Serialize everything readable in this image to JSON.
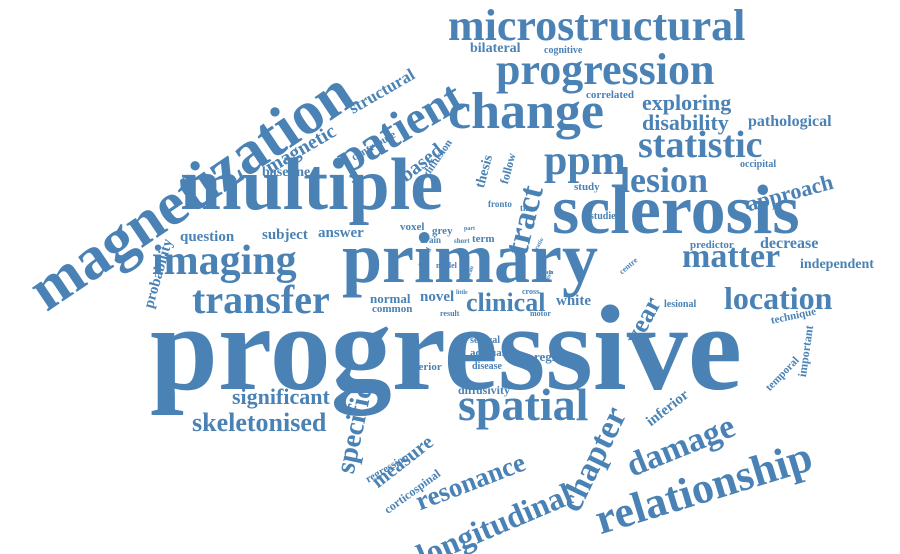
{
  "style": {
    "word_color": "#4a82b5",
    "background": "#ffffff"
  },
  "words": {
    "progressive": "progressive",
    "primary": "primary",
    "multiple": "multiple",
    "sclerosis": "sclerosis",
    "magnetization": "magnetization",
    "microstructural": "microstructural",
    "progression": "progression",
    "change": "change",
    "patient": "patient",
    "imaging": "imaging",
    "transfer": "transfer",
    "spatial": "spatial",
    "relationship": "relationship",
    "ppm": "ppm",
    "statistic": "statistic",
    "lesion": "lesion",
    "tract": "tract",
    "matter": "matter",
    "location": "location",
    "damage": "damage",
    "chapter": "chapter",
    "longitudinal": "longitudinal",
    "resonance": "resonance",
    "specific": "specific",
    "skeletonised": "skeletonised",
    "significant": "significant",
    "clinical": "clinical",
    "exploring": "exploring",
    "disability": "disability",
    "pathological": "pathological",
    "approach": "approach",
    "year": "year",
    "magnetic": "magnetic",
    "structural": "structural",
    "based": "based",
    "bilateral": "bilateral",
    "cognitive": "cognitive",
    "correlated": "correlated",
    "contribute": "contribute",
    "diffusion": "diffusion",
    "baseline": "baseline",
    "thesis": "thesis",
    "follow": "follow",
    "probability": "probability",
    "question": "question",
    "subject": "subject",
    "answer": "answer",
    "voxel": "voxel",
    "brain": "brain",
    "grey": "grey",
    "short": "short",
    "term": "term",
    "fronto": "fronto",
    "time": "time",
    "study": "study",
    "studies": "studies",
    "occipital": "occipital",
    "decrease": "decrease",
    "predictor": "predictor",
    "independent": "independent",
    "normal": "normal",
    "common": "common",
    "novel": "novel",
    "white": "white",
    "lesional": "lesional",
    "technique": "technique",
    "important": "important",
    "temporal": "temporal",
    "inferior": "inferior",
    "superior": "superior",
    "several": "several",
    "accrual": "accrual",
    "disease": "disease",
    "region": "region",
    "diffusivity": "diffusivity",
    "measure": "measure",
    "regression": "regression",
    "corticospinal": "corticospinal",
    "spinal": "spinal",
    "model": "model",
    "result": "result",
    "motor": "motor",
    "cross": "cross",
    "centre": "centre",
    "ratio": "ratio",
    "data": "data",
    "cord": "cord",
    "part": "part",
    "tests": "tests",
    "scan": "scan",
    "lead": "lead",
    "little": "little"
  }
}
